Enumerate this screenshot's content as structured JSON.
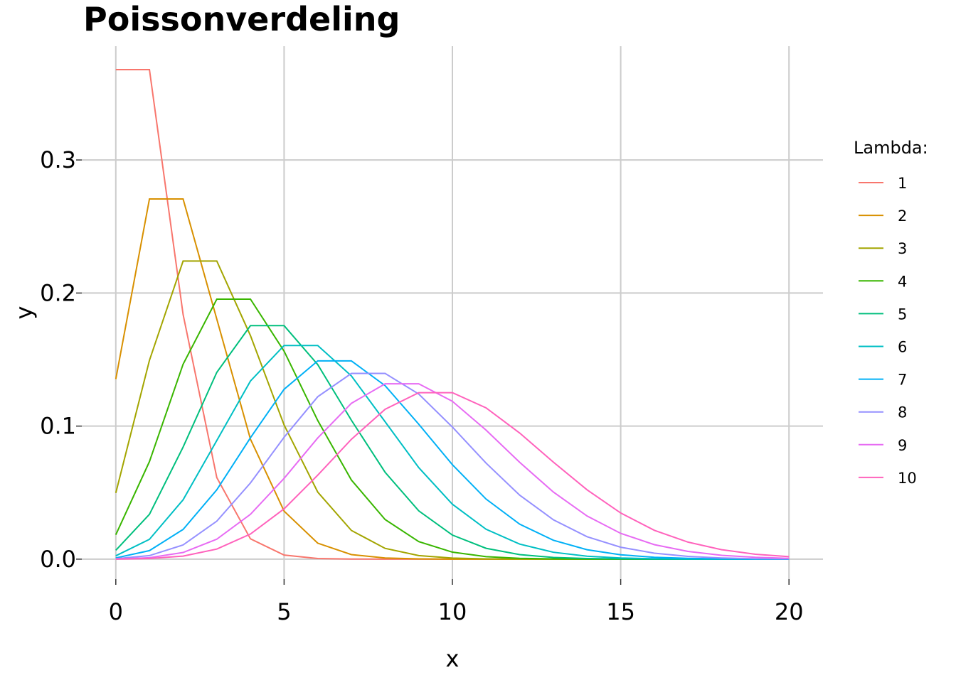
{
  "chart_data": {
    "type": "line",
    "title": "Poissonverdeling",
    "xlabel": "x",
    "ylabel": "y",
    "xlim": [
      -1.01,
      21.01
    ],
    "ylim": [
      -0.015,
      0.3855
    ],
    "xticks": [
      0,
      5,
      10,
      15,
      20
    ],
    "xtick_labels": [
      "0",
      "5",
      "10",
      "15",
      "20"
    ],
    "yticks": [
      0.0,
      0.1,
      0.2,
      0.3
    ],
    "ytick_labels": [
      "0.0",
      "0.1",
      "0.2",
      "0.3"
    ],
    "grid": true,
    "legend": {
      "title": "Lambda:",
      "placement": "right"
    },
    "x": [
      0,
      1,
      2,
      3,
      4,
      5,
      6,
      7,
      8,
      9,
      10,
      11,
      12,
      13,
      14,
      15,
      16,
      17,
      18,
      19,
      20
    ],
    "series": [
      {
        "name": "1",
        "color": "#F8766D",
        "values": [
          0.3679,
          0.3679,
          0.1839,
          0.0613,
          0.0153,
          0.0031,
          0.0005,
          0.0001,
          0,
          0,
          0,
          0,
          0,
          0,
          0,
          0,
          0,
          0,
          0,
          0,
          0
        ]
      },
      {
        "name": "2",
        "color": "#D89000",
        "values": [
          0.1353,
          0.2707,
          0.2707,
          0.1804,
          0.0902,
          0.0361,
          0.012,
          0.0034,
          0.0009,
          0.0002,
          0,
          0,
          0,
          0,
          0,
          0,
          0,
          0,
          0,
          0,
          0
        ]
      },
      {
        "name": "3",
        "color": "#A3A500",
        "values": [
          0.0498,
          0.1494,
          0.224,
          0.224,
          0.168,
          0.1008,
          0.0504,
          0.0216,
          0.0081,
          0.0027,
          0.0008,
          0.0002,
          0.0001,
          0,
          0,
          0,
          0,
          0,
          0,
          0,
          0
        ]
      },
      {
        "name": "4",
        "color": "#39B600",
        "values": [
          0.0183,
          0.0733,
          0.1465,
          0.1954,
          0.1954,
          0.1563,
          0.1042,
          0.0595,
          0.0298,
          0.0132,
          0.0053,
          0.0019,
          0.0006,
          0.0002,
          0.0001,
          0,
          0,
          0,
          0,
          0,
          0
        ]
      },
      {
        "name": "5",
        "color": "#00BF7D",
        "values": [
          0.0067,
          0.0337,
          0.0842,
          0.1404,
          0.1755,
          0.1755,
          0.1462,
          0.1044,
          0.0653,
          0.0363,
          0.0181,
          0.0082,
          0.0034,
          0.0013,
          0.0005,
          0.0002,
          0.0,
          0,
          0,
          0,
          0
        ]
      },
      {
        "name": "6",
        "color": "#00BFC4",
        "values": [
          0.0025,
          0.0149,
          0.0446,
          0.0892,
          0.1339,
          0.1606,
          0.1606,
          0.1377,
          0.1033,
          0.0688,
          0.0413,
          0.0225,
          0.0113,
          0.0052,
          0.0022,
          0.0009,
          0.0003,
          0.0001,
          0,
          0,
          0
        ]
      },
      {
        "name": "7",
        "color": "#00B0F6",
        "values": [
          0.0009,
          0.0064,
          0.0223,
          0.0521,
          0.0912,
          0.1277,
          0.149,
          0.149,
          0.1304,
          0.1014,
          0.071,
          0.0452,
          0.0263,
          0.0142,
          0.0071,
          0.0033,
          0.0014,
          0.0006,
          0.0002,
          0.0001,
          0
        ]
      },
      {
        "name": "8",
        "color": "#9590FF",
        "values": [
          0.0003,
          0.0027,
          0.0107,
          0.0286,
          0.0573,
          0.0916,
          0.1221,
          0.1396,
          0.1396,
          0.1241,
          0.0993,
          0.0722,
          0.0481,
          0.0296,
          0.0169,
          0.009,
          0.0045,
          0.0021,
          0.0009,
          0.0004,
          0.0002
        ]
      },
      {
        "name": "9",
        "color": "#E76BF3",
        "values": [
          0.0001,
          0.0011,
          0.005,
          0.015,
          0.0337,
          0.0607,
          0.0911,
          0.1171,
          0.1318,
          0.1318,
          0.1186,
          0.097,
          0.0728,
          0.0504,
          0.0324,
          0.0194,
          0.0109,
          0.0058,
          0.0029,
          0.0014,
          0.0006
        ]
      },
      {
        "name": "10",
        "color": "#FF62BC",
        "values": [
          0.0,
          0.0005,
          0.0023,
          0.0076,
          0.0189,
          0.0378,
          0.0631,
          0.0901,
          0.1126,
          0.1251,
          0.1251,
          0.1137,
          0.0948,
          0.0729,
          0.0521,
          0.0347,
          0.0217,
          0.0128,
          0.0071,
          0.0037,
          0.0019
        ]
      }
    ]
  }
}
